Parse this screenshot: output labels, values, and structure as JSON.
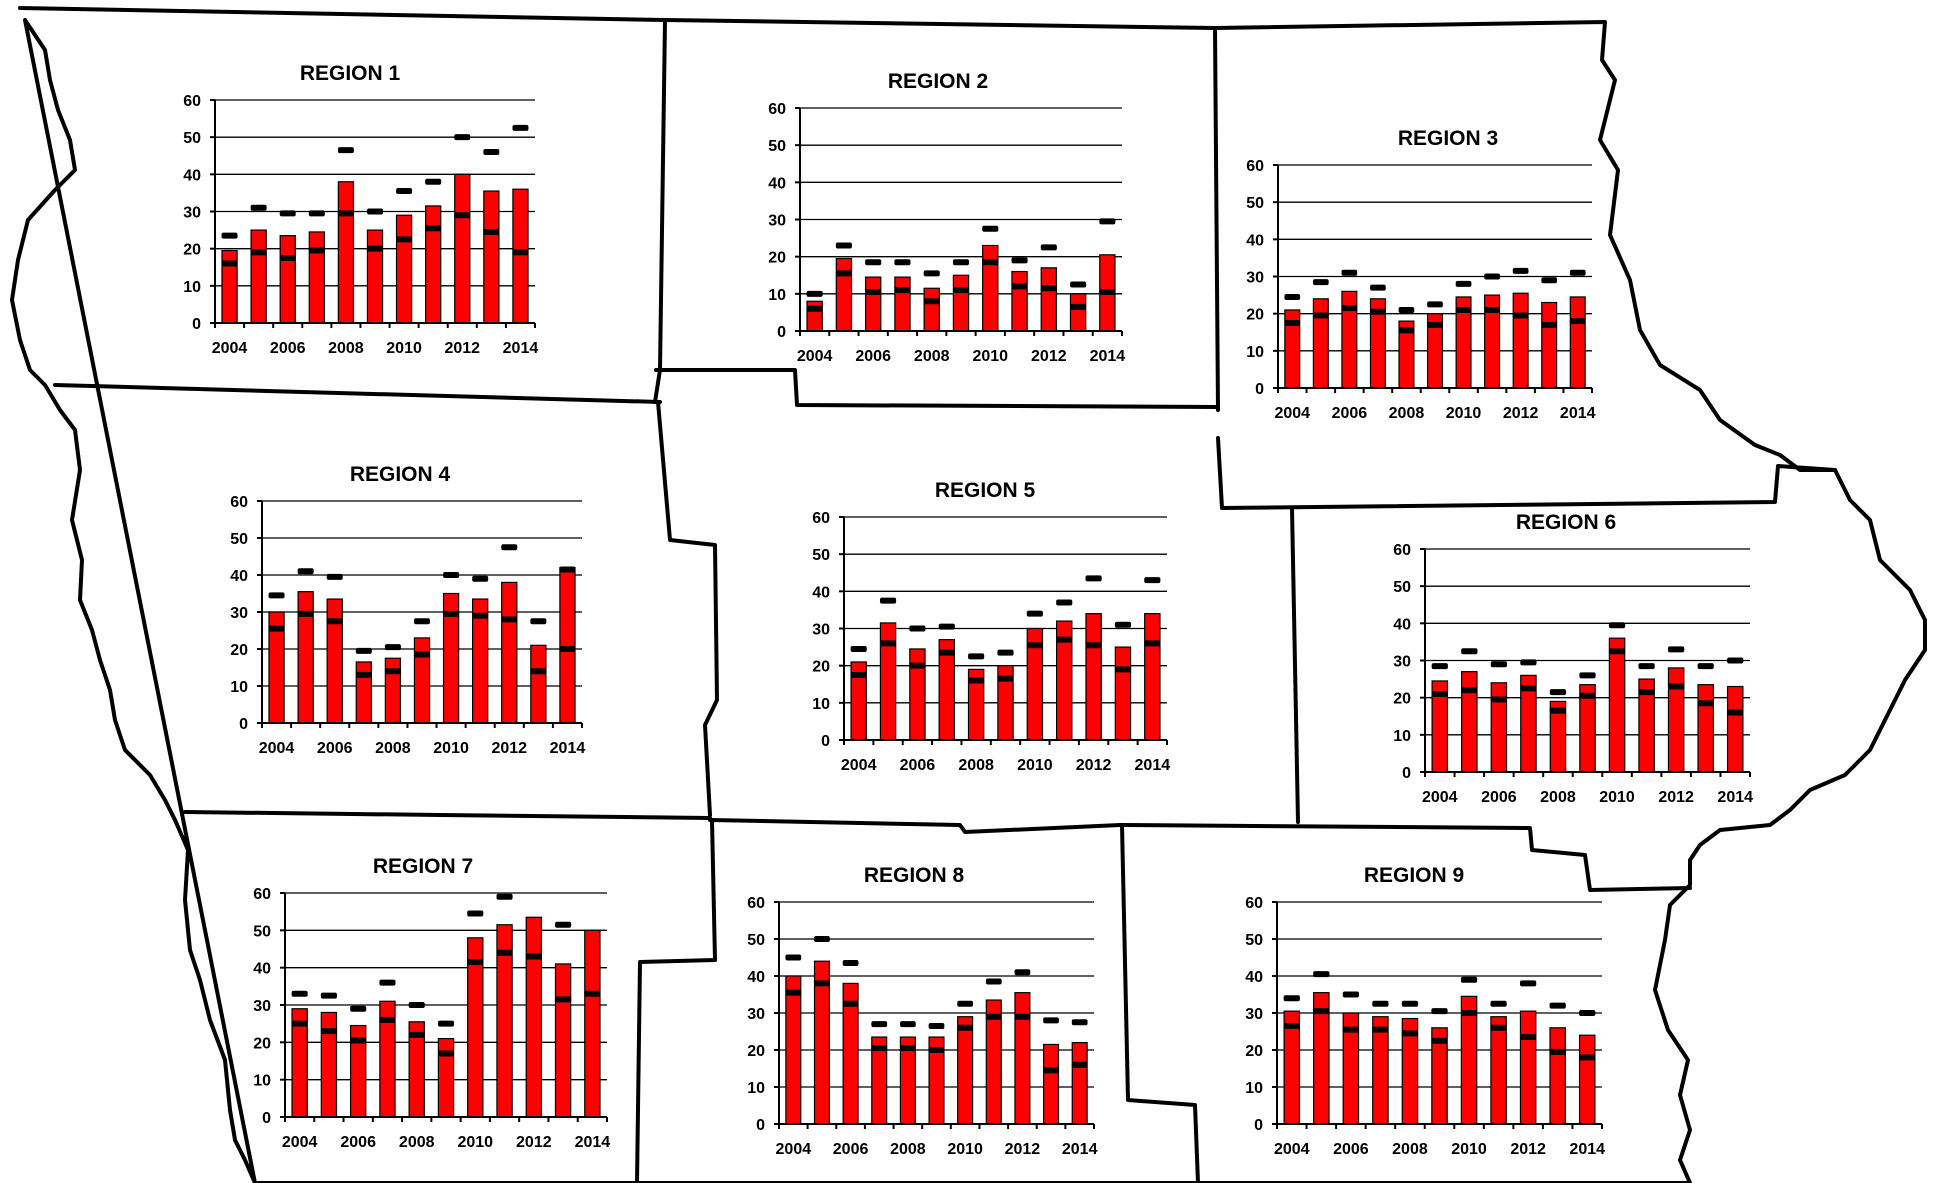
{
  "style": {
    "bar_color": "#ff0000",
    "marker_color": "#000000",
    "grid_color": "#000000"
  },
  "chart_data": [
    {
      "type": "bar",
      "title": "REGION 1",
      "ylim": [
        0,
        60
      ],
      "yticks": [
        0,
        10,
        20,
        30,
        40,
        50,
        60
      ],
      "x": [
        2004,
        2005,
        2006,
        2007,
        2008,
        2009,
        2010,
        2011,
        2012,
        2013,
        2014
      ],
      "xtick_labels": [
        "2004",
        "2006",
        "2008",
        "2010",
        "2012",
        "2014"
      ],
      "series": [
        {
          "kind": "bar",
          "values": [
            19.5,
            25,
            23.5,
            24.5,
            38,
            25,
            29,
            31.5,
            40,
            35.5,
            36
          ]
        },
        {
          "kind": "marker",
          "values": [
            23.5,
            31,
            29.5,
            29.5,
            46.5,
            30,
            35.5,
            38,
            50,
            46,
            52.5
          ]
        },
        {
          "kind": "marker",
          "values": [
            16,
            19,
            17.5,
            19.5,
            29.5,
            20,
            22.5,
            25.5,
            29,
            24.5,
            19
          ]
        }
      ]
    },
    {
      "type": "bar",
      "title": "REGION 2",
      "ylim": [
        0,
        60
      ],
      "yticks": [
        0,
        10,
        20,
        30,
        40,
        50,
        60
      ],
      "x": [
        2004,
        2005,
        2006,
        2007,
        2008,
        2009,
        2010,
        2011,
        2012,
        2013,
        2014
      ],
      "xtick_labels": [
        "2004",
        "2006",
        "2008",
        "2010",
        "2012",
        "2014"
      ],
      "series": [
        {
          "kind": "bar",
          "values": [
            8,
            19.5,
            14.5,
            14.5,
            11.5,
            15,
            23,
            16,
            17,
            10,
            20.5
          ]
        },
        {
          "kind": "marker",
          "values": [
            10,
            23,
            18.5,
            18.5,
            15.5,
            18.5,
            27.5,
            19,
            22.5,
            12.5,
            29.5
          ]
        },
        {
          "kind": "marker",
          "values": [
            6,
            15.5,
            10.5,
            11,
            8,
            11,
            18.5,
            12,
            11.5,
            6.5,
            10.5
          ]
        }
      ]
    },
    {
      "type": "bar",
      "title": "REGION 3",
      "ylim": [
        0,
        60
      ],
      "yticks": [
        0,
        10,
        20,
        30,
        40,
        50,
        60
      ],
      "x": [
        2004,
        2005,
        2006,
        2007,
        2008,
        2009,
        2010,
        2011,
        2012,
        2013,
        2014
      ],
      "xtick_labels": [
        "2004",
        "2006",
        "2008",
        "2010",
        "2012",
        "2014"
      ],
      "series": [
        {
          "kind": "bar",
          "values": [
            21,
            24,
            26,
            24,
            18,
            20,
            24.5,
            25,
            25.5,
            23,
            24.5
          ]
        },
        {
          "kind": "marker",
          "values": [
            24.5,
            28.5,
            31,
            27,
            21,
            22.5,
            28,
            30,
            31.5,
            29,
            31
          ]
        },
        {
          "kind": "marker",
          "values": [
            17.5,
            19.5,
            21.5,
            20.5,
            15.5,
            17,
            21,
            21,
            19.5,
            17,
            18
          ]
        }
      ]
    },
    {
      "type": "bar",
      "title": "REGION 4",
      "ylim": [
        0,
        60
      ],
      "yticks": [
        0,
        10,
        20,
        30,
        40,
        50,
        60
      ],
      "x": [
        2004,
        2005,
        2006,
        2007,
        2008,
        2009,
        2010,
        2011,
        2012,
        2013,
        2014
      ],
      "xtick_labels": [
        "2004",
        "2006",
        "2008",
        "2010",
        "2012",
        "2014"
      ],
      "series": [
        {
          "kind": "bar",
          "values": [
            30,
            35.5,
            33.5,
            16.5,
            17.5,
            23,
            35,
            33.5,
            38,
            21,
            42
          ]
        },
        {
          "kind": "marker",
          "values": [
            34.5,
            41,
            39.5,
            19.5,
            20.5,
            27.5,
            40,
            39,
            47.5,
            27.5,
            41.5
          ]
        },
        {
          "kind": "marker",
          "values": [
            25.5,
            29.5,
            27.5,
            13,
            14,
            18.5,
            29.5,
            29,
            28,
            14,
            20
          ]
        }
      ]
    },
    {
      "type": "bar",
      "title": "REGION 5",
      "ylim": [
        0,
        60
      ],
      "yticks": [
        0,
        10,
        20,
        30,
        40,
        50,
        60
      ],
      "x": [
        2004,
        2005,
        2006,
        2007,
        2008,
        2009,
        2010,
        2011,
        2012,
        2013,
        2014
      ],
      "xtick_labels": [
        "2004",
        "2006",
        "2008",
        "2010",
        "2012",
        "2014"
      ],
      "series": [
        {
          "kind": "bar",
          "values": [
            21,
            31.5,
            24.5,
            27,
            19,
            20,
            30,
            32,
            34,
            25,
            34
          ]
        },
        {
          "kind": "marker",
          "values": [
            24.5,
            37.5,
            30,
            30.5,
            22.5,
            23.5,
            34,
            37,
            43.5,
            31,
            43
          ]
        },
        {
          "kind": "marker",
          "values": [
            17.5,
            26,
            20,
            23.5,
            16,
            16.5,
            25.5,
            27,
            25.5,
            19,
            26
          ]
        }
      ]
    },
    {
      "type": "bar",
      "title": "REGION 6",
      "ylim": [
        0,
        60
      ],
      "yticks": [
        0,
        10,
        20,
        30,
        40,
        50,
        60
      ],
      "x": [
        2004,
        2005,
        2006,
        2007,
        2008,
        2009,
        2010,
        2011,
        2012,
        2013,
        2014
      ],
      "xtick_labels": [
        "2004",
        "2006",
        "2008",
        "2010",
        "2012",
        "2014"
      ],
      "series": [
        {
          "kind": "bar",
          "values": [
            24.5,
            27,
            24,
            26,
            19,
            23.5,
            36,
            25,
            28,
            23.5,
            23
          ]
        },
        {
          "kind": "marker",
          "values": [
            28.5,
            32.5,
            29,
            29.5,
            21.5,
            26,
            39.5,
            28.5,
            33,
            28.5,
            30
          ]
        },
        {
          "kind": "marker",
          "values": [
            21,
            22,
            19.5,
            22.5,
            16.5,
            20.5,
            32.5,
            21.5,
            23,
            18.5,
            16
          ]
        }
      ]
    },
    {
      "type": "bar",
      "title": "REGION 7",
      "ylim": [
        0,
        60
      ],
      "yticks": [
        0,
        10,
        20,
        30,
        40,
        50,
        60
      ],
      "x": [
        2004,
        2005,
        2006,
        2007,
        2008,
        2009,
        2010,
        2011,
        2012,
        2013,
        2014
      ],
      "xtick_labels": [
        "2004",
        "2006",
        "2008",
        "2010",
        "2012",
        "2014"
      ],
      "series": [
        {
          "kind": "bar",
          "values": [
            29,
            28,
            24.5,
            31,
            25.5,
            21,
            48,
            51.5,
            53.5,
            41,
            50
          ]
        },
        {
          "kind": "marker",
          "values": [
            33,
            32.5,
            29,
            36,
            30,
            25,
            54.5,
            59,
            null,
            51.5,
            null
          ]
        },
        {
          "kind": "marker",
          "values": [
            25,
            23,
            20.5,
            26,
            22,
            17,
            41.5,
            44,
            43,
            31.5,
            33
          ]
        }
      ]
    },
    {
      "type": "bar",
      "title": "REGION 8",
      "ylim": [
        0,
        60
      ],
      "yticks": [
        0,
        10,
        20,
        30,
        40,
        50,
        60
      ],
      "x": [
        2004,
        2005,
        2006,
        2007,
        2008,
        2009,
        2010,
        2011,
        2012,
        2013,
        2014
      ],
      "xtick_labels": [
        "2004",
        "2006",
        "2008",
        "2010",
        "2012",
        "2014"
      ],
      "series": [
        {
          "kind": "bar",
          "values": [
            40,
            44,
            38,
            23.5,
            23.5,
            23.5,
            29,
            33.5,
            35.5,
            21.5,
            22
          ]
        },
        {
          "kind": "marker",
          "values": [
            45,
            50,
            43.5,
            27,
            27,
            26.5,
            32.5,
            38.5,
            41,
            28,
            27.5
          ]
        },
        {
          "kind": "marker",
          "values": [
            35.5,
            38,
            32.5,
            20.5,
            20.5,
            20,
            26,
            29,
            29,
            14.5,
            16
          ]
        }
      ]
    },
    {
      "type": "bar",
      "title": "REGION 9",
      "ylim": [
        0,
        60
      ],
      "yticks": [
        0,
        10,
        20,
        30,
        40,
        50,
        60
      ],
      "x": [
        2004,
        2005,
        2006,
        2007,
        2008,
        2009,
        2010,
        2011,
        2012,
        2013,
        2014
      ],
      "xtick_labels": [
        "2004",
        "2006",
        "2008",
        "2010",
        "2012",
        "2014"
      ],
      "series": [
        {
          "kind": "bar",
          "values": [
            30.5,
            35.5,
            30,
            29,
            28.5,
            26,
            34.5,
            29,
            30.5,
            26,
            24
          ]
        },
        {
          "kind": "marker",
          "values": [
            34,
            40.5,
            35,
            32.5,
            32.5,
            30.5,
            39,
            32.5,
            38,
            32,
            30
          ]
        },
        {
          "kind": "marker",
          "values": [
            26.5,
            30.5,
            25.5,
            25.5,
            24.5,
            22.5,
            30,
            26,
            23.5,
            19.5,
            18
          ]
        }
      ]
    }
  ]
}
